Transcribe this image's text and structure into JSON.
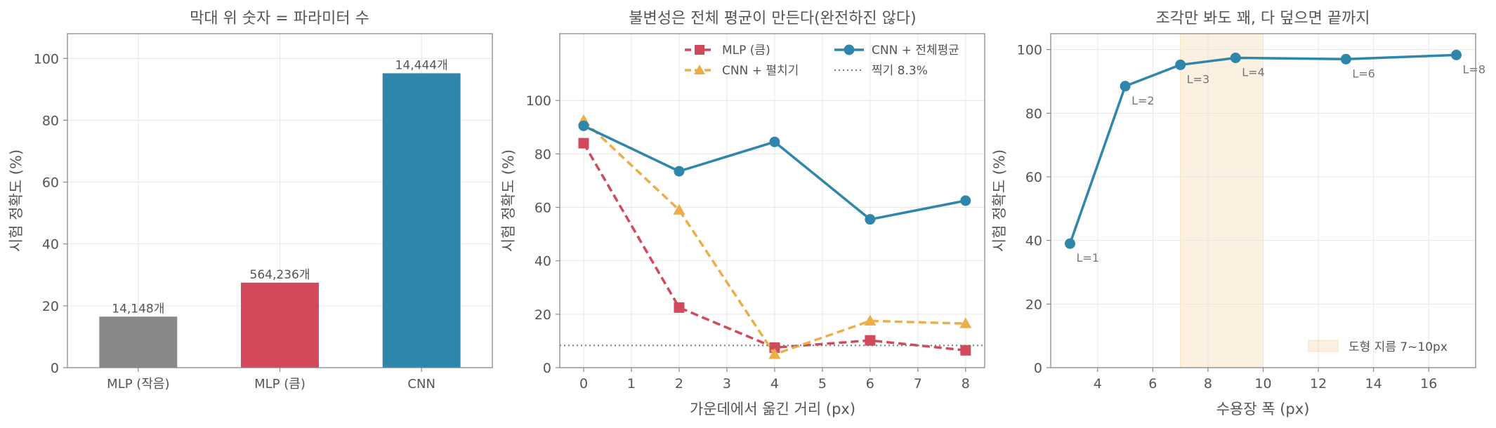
{
  "chart_data": [
    {
      "type": "bar",
      "title": "막대 위 숫자 = 파라미터 수",
      "xlabel": "",
      "ylabel": "시험 정확도 (%)",
      "ylim": [
        0,
        108
      ],
      "yticks": [
        0,
        20,
        40,
        60,
        80,
        100
      ],
      "categories": [
        "MLP (작음)",
        "MLP (큼)",
        "CNN"
      ],
      "values": [
        16.5,
        27.5,
        95.2
      ],
      "bar_labels": [
        "14,148개",
        "564,236개",
        "14,444개"
      ],
      "colors": [
        "#888888",
        "#d1495b",
        "#2e86ab"
      ],
      "grid": true
    },
    {
      "type": "line",
      "title": "불변성은 전체 평균이 만든다(완전하진 않다)",
      "xlabel": "가운데에서 옮긴 거리 (px)",
      "ylabel": "시험 정확도 (%)",
      "xlim": [
        -0.5,
        8.4
      ],
      "ylim": [
        0,
        125
      ],
      "xticks": [
        0,
        1,
        2,
        3,
        4,
        5,
        6,
        7,
        8
      ],
      "yticks": [
        0,
        20,
        40,
        60,
        80,
        100
      ],
      "x": [
        0,
        2,
        4,
        6,
        8
      ],
      "series": [
        {
          "name": "MLP (큼)",
          "values": [
            84,
            22.5,
            7.5,
            10.2,
            6.5
          ],
          "color": "#d1495b",
          "dash": "dashed",
          "marker": "square"
        },
        {
          "name": "CNN + 펼치기",
          "values": [
            92.5,
            59,
            5,
            17.5,
            16.5
          ],
          "color": "#edae49",
          "dash": "dashed",
          "marker": "triangle"
        },
        {
          "name": "CNN + 전체평균",
          "values": [
            90.5,
            73.5,
            84.5,
            55.5,
            62.5
          ],
          "color": "#2e86ab",
          "dash": "solid",
          "marker": "circle"
        },
        {
          "name": "찍기 8.3%",
          "constant": 8.3,
          "color": "#777777",
          "dash": "dotted",
          "marker": "none"
        }
      ],
      "legend_position": "top-right",
      "grid": true
    },
    {
      "type": "line",
      "title": "조각만 봐도 꽤, 다 덮으면 끝까지",
      "xlabel": "수용장 폭 (px)",
      "ylabel": "시험 정확도 (%)",
      "xlim": [
        2.3,
        17.7
      ],
      "ylim": [
        0,
        105
      ],
      "xticks": [
        4,
        6,
        8,
        10,
        12,
        14,
        16
      ],
      "yticks": [
        0,
        20,
        40,
        60,
        80,
        100
      ],
      "x": [
        3,
        5,
        7,
        9,
        13,
        17
      ],
      "series": [
        {
          "values": [
            39,
            88.5,
            95.2,
            97.4,
            97,
            98.3
          ],
          "color": "#2e86ab",
          "marker": "circle"
        }
      ],
      "point_labels": [
        "L=1",
        "L=2",
        "L=3",
        "L=4",
        "L=6",
        "L=8"
      ],
      "shaded_band": {
        "x_from": 7,
        "x_to": 10,
        "label": "도형 지름 7~10px",
        "color": "#edae49"
      },
      "legend_position": "bottom-right",
      "grid": true
    }
  ]
}
